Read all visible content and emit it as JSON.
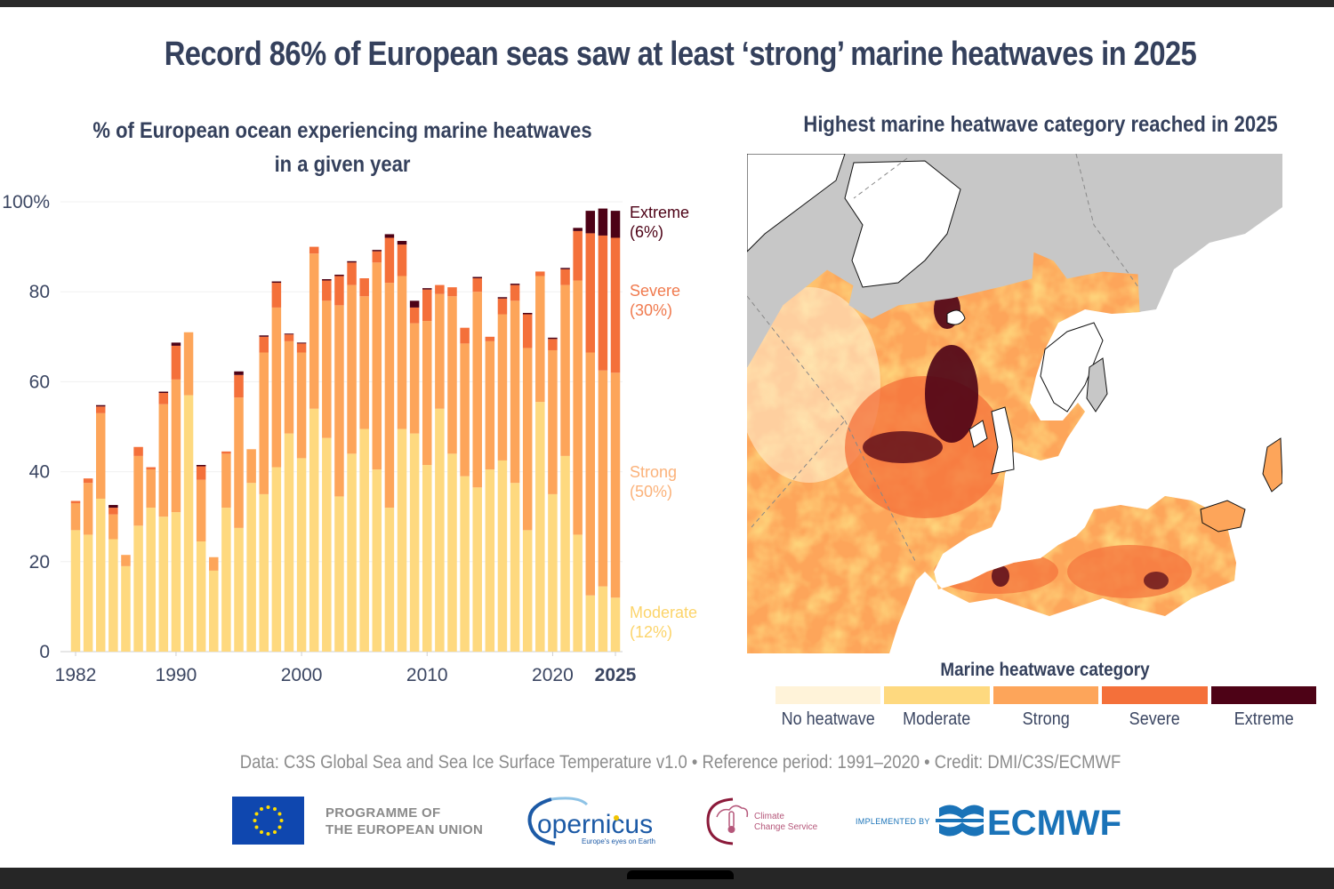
{
  "main_title": "Record 86% of European seas saw at least ‘strong’ marine heatwaves in 2025",
  "left_panel": {
    "title_line1": "% of European ocean experiencing marine heatwaves",
    "title_line2": "in a given year"
  },
  "right_panel": {
    "title": "Highest marine heatwave category reached in 2025",
    "legend_title": "Marine heatwave category",
    "legend": [
      {
        "label": "No heatwave",
        "color": "#fff3d9"
      },
      {
        "label": "Moderate",
        "color": "#fed97f"
      },
      {
        "label": "Strong",
        "color": "#fda55a"
      },
      {
        "label": "Severe",
        "color": "#f4703a"
      },
      {
        "label": "Extreme",
        "color": "#4d0216"
      }
    ]
  },
  "chart_data": {
    "type": "bar",
    "stacked": true,
    "title": "% of European ocean experiencing marine heatwaves in a given year",
    "xlabel": "",
    "ylabel": "",
    "ylim": [
      0,
      100
    ],
    "yticks": [
      0,
      20,
      40,
      60,
      80,
      100
    ],
    "ytick_labels": [
      "0",
      "20",
      "40",
      "60",
      "80",
      "100%"
    ],
    "xticks": [
      1982,
      1990,
      2000,
      2010,
      2020,
      2025
    ],
    "xtick_labels": [
      "1982",
      "1990",
      "2000",
      "2010",
      "2020",
      "2025"
    ],
    "grid": "horizontal",
    "x": [
      1982,
      1983,
      1984,
      1985,
      1986,
      1987,
      1988,
      1989,
      1990,
      1991,
      1992,
      1993,
      1994,
      1995,
      1996,
      1997,
      1998,
      1999,
      2000,
      2001,
      2002,
      2003,
      2004,
      2005,
      2006,
      2007,
      2008,
      2009,
      2010,
      2011,
      2012,
      2013,
      2014,
      2015,
      2016,
      2017,
      2018,
      2019,
      2020,
      2021,
      2022,
      2023,
      2024,
      2025
    ],
    "series": [
      {
        "name": "Moderate",
        "color": "#fed97f",
        "label_2025": "Moderate",
        "pct_2025": "(12%)",
        "values": [
          27,
          26,
          34,
          25,
          19,
          28,
          32,
          30,
          31,
          57,
          24.5,
          18,
          32,
          27.5,
          37.5,
          35,
          41,
          48.5,
          43,
          54,
          47.5,
          34.5,
          44,
          49.5,
          40.5,
          32,
          49.5,
          48.5,
          41.5,
          54,
          44,
          39,
          36.5,
          40.5,
          42.5,
          37.5,
          27,
          55.5,
          35,
          43.5,
          26,
          12.5,
          14.5,
          12
        ]
      },
      {
        "name": "Strong",
        "color": "#fda55a",
        "label_2025": "Strong",
        "pct_2025": "(50%)",
        "values": [
          6,
          11.5,
          19,
          5.5,
          2.5,
          15.5,
          8.5,
          25,
          29.5,
          14,
          13.7,
          3,
          12,
          29,
          7.5,
          31.5,
          35.5,
          20.5,
          23.5,
          34.5,
          30.5,
          42.5,
          37.5,
          29.5,
          46,
          50,
          34,
          24.5,
          32,
          25.5,
          35,
          29.5,
          43.5,
          28.5,
          32.5,
          40.5,
          40.5,
          28,
          32,
          38,
          56.5,
          54,
          48,
          50
        ]
      },
      {
        "name": "Severe",
        "color": "#f4703a",
        "label_2025": "Severe",
        "pct_2025": "(30%)",
        "values": [
          0.5,
          1,
          1.5,
          1.5,
          0,
          2,
          0.5,
          2.5,
          7.5,
          0,
          3,
          0,
          0.5,
          5,
          0,
          3.5,
          5.5,
          1.5,
          2,
          1.5,
          4.5,
          6.5,
          5,
          4,
          2.5,
          10,
          7,
          3.5,
          7,
          2,
          2,
          3.5,
          3,
          1,
          3.5,
          3.5,
          7.5,
          1,
          2.5,
          3.5,
          11,
          26.5,
          30,
          30
        ]
      },
      {
        "name": "Extreme",
        "color": "#4d0216",
        "label_2025": "Extreme",
        "pct_2025": "(6%)",
        "values": [
          0,
          0,
          0.3,
          0.6,
          0,
          0,
          0,
          0.3,
          0.7,
          0,
          0.3,
          0,
          0,
          0.8,
          0,
          0.3,
          0.3,
          0.2,
          0.2,
          0,
          0.3,
          0.3,
          0.3,
          0,
          0.3,
          0.8,
          0.8,
          1.5,
          0.3,
          0,
          0,
          0,
          0.3,
          0,
          0.3,
          0.3,
          0.3,
          0,
          0.3,
          0.3,
          0.7,
          5,
          6,
          6
        ]
      }
    ],
    "series_label_colors": {
      "Moderate": "#fcd46a",
      "Strong": "#fbb27a",
      "Severe": "#f07a4e",
      "Extreme": "#4d0216"
    },
    "legend": "right-end labels"
  },
  "footer": {
    "note": "Data: C3S Global Sea and Sea Ice Surface Temperature v1.0 • Reference period: 1991–2020 • Credit: DMI/C3S/ECMWF",
    "eu_line1": "PROGRAMME OF",
    "eu_line2": "THE EUROPEAN UNION",
    "copernicus_name": "opernicus",
    "copernicus_tagline": "Europe's eyes on Earth",
    "c3s_line1": "Climate",
    "c3s_line2": "Change Service",
    "implemented_by": "IMPLEMENTED BY",
    "ecmwf_name": "ECMWF"
  }
}
